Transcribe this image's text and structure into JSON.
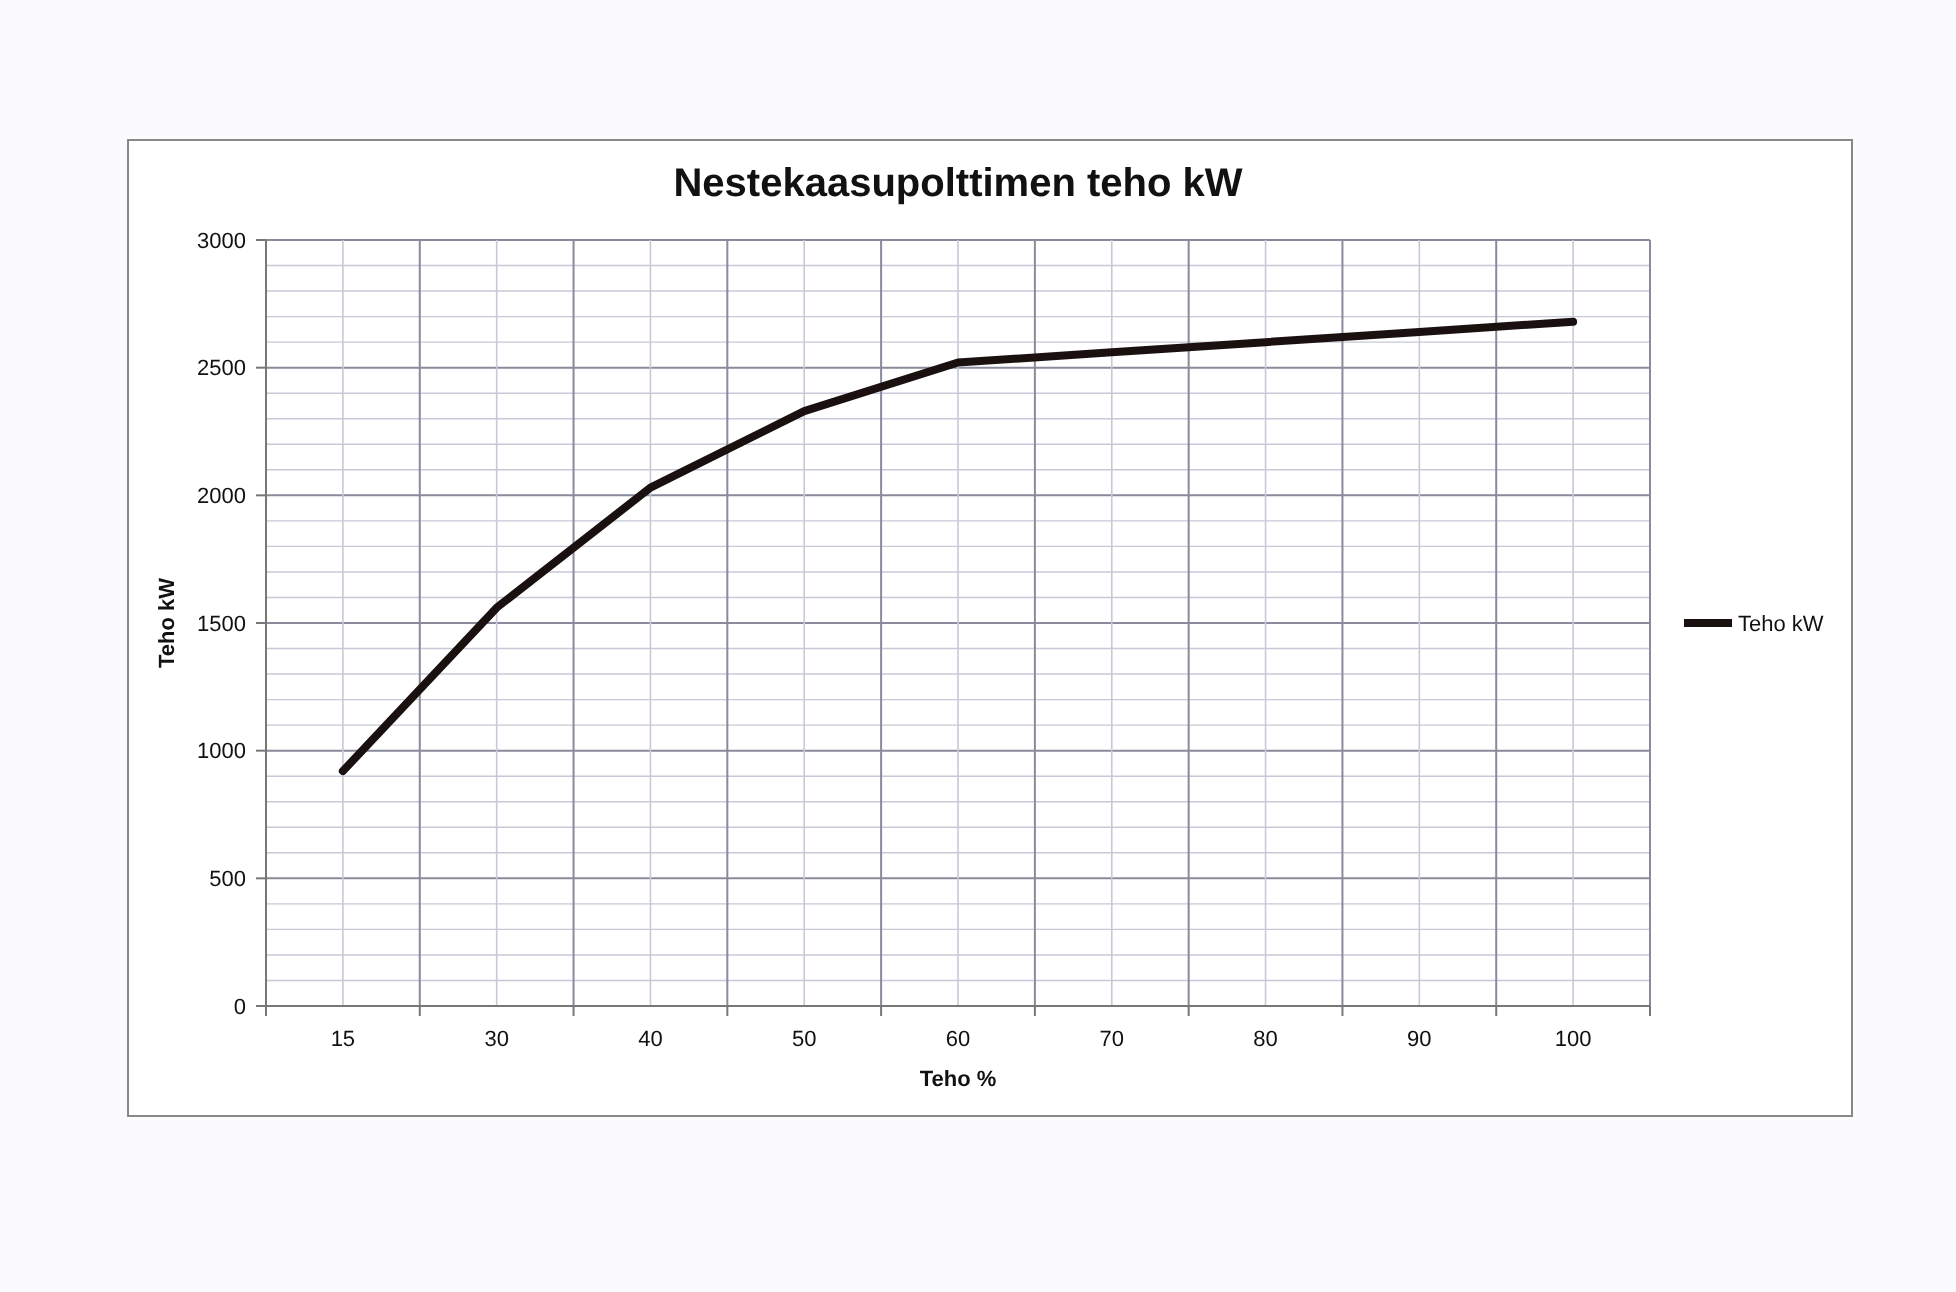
{
  "chart_data": {
    "type": "line",
    "title": "Nestekaasupolttimen teho kW",
    "xlabel": "Teho %",
    "ylabel": "Teho kW",
    "categories": [
      "15",
      "30",
      "40",
      "50",
      "60",
      "70",
      "80",
      "90",
      "100"
    ],
    "series": [
      {
        "name": "Teho kW",
        "color": "#1a1010",
        "values": [
          920,
          1560,
          2030,
          2330,
          2520,
          2560,
          2600,
          2640,
          2680
        ]
      }
    ],
    "ylim": [
      0,
      3000
    ],
    "yticks": [
      0,
      500,
      1000,
      1500,
      2000,
      2500,
      3000
    ],
    "grid": true,
    "legend": "right",
    "line_style": "solid"
  }
}
